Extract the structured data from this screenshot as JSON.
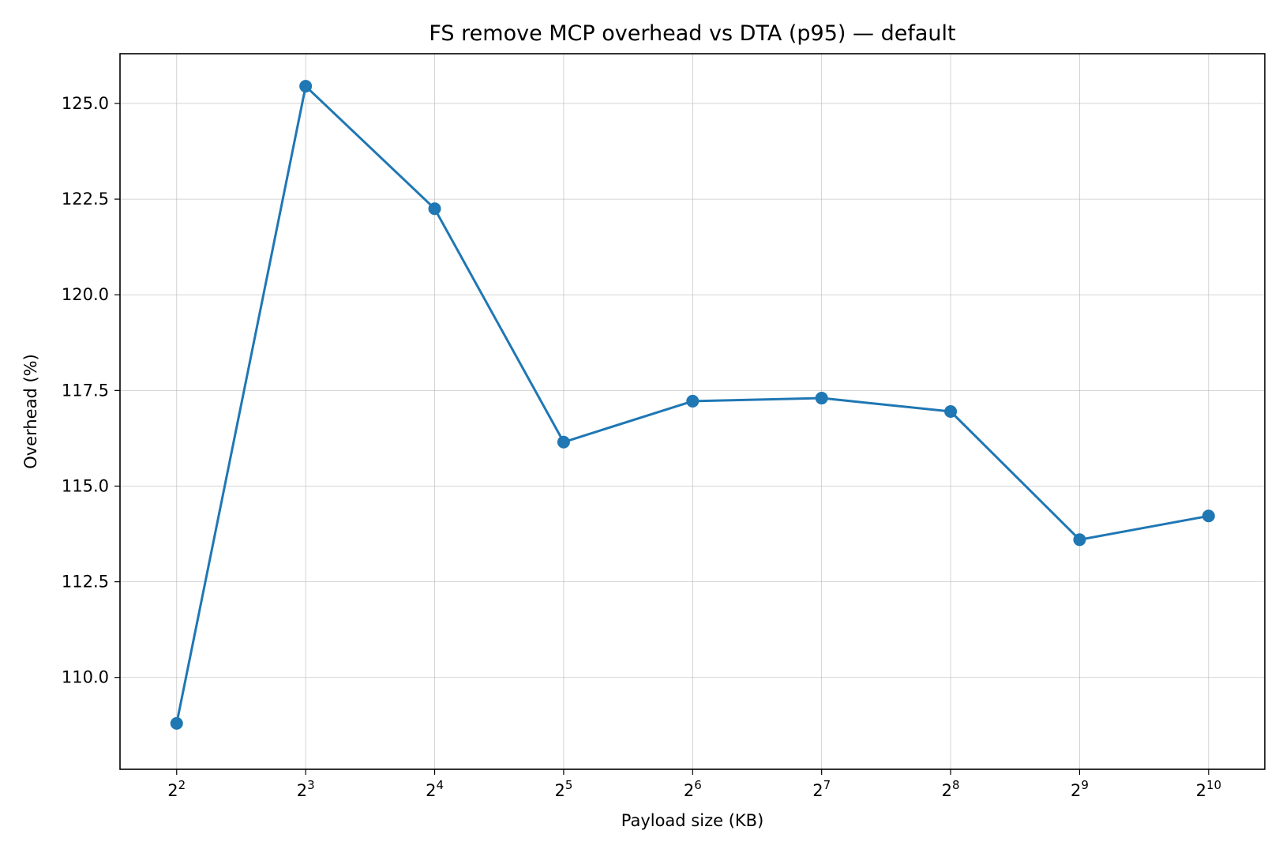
{
  "chart_data": {
    "type": "line",
    "title": "FS remove MCP overhead vs DTA (p95) — default",
    "xlabel": "Payload size (KB)",
    "ylabel": "Overhead (%)",
    "x_scale": "log2",
    "x_tick_labels": [
      {
        "base": "2",
        "exp": "2"
      },
      {
        "base": "2",
        "exp": "3"
      },
      {
        "base": "2",
        "exp": "4"
      },
      {
        "base": "2",
        "exp": "5"
      },
      {
        "base": "2",
        "exp": "6"
      },
      {
        "base": "2",
        "exp": "7"
      },
      {
        "base": "2",
        "exp": "8"
      },
      {
        "base": "2",
        "exp": "9"
      },
      {
        "base": "2",
        "exp": "10"
      }
    ],
    "y_tick_labels": [
      "110.0",
      "112.5",
      "115.0",
      "117.5",
      "120.0",
      "122.5",
      "125.0"
    ],
    "x": [
      4,
      8,
      16,
      32,
      64,
      128,
      256,
      512,
      1024
    ],
    "xlim": [
      2.95,
      1385
    ],
    "ylim": [
      107.6,
      126.3
    ],
    "grid": true,
    "series": [
      {
        "color": "#1f77b4",
        "values": [
          108.8,
          125.45,
          122.25,
          116.15,
          117.22,
          117.3,
          116.95,
          113.6,
          114.22
        ]
      }
    ]
  }
}
